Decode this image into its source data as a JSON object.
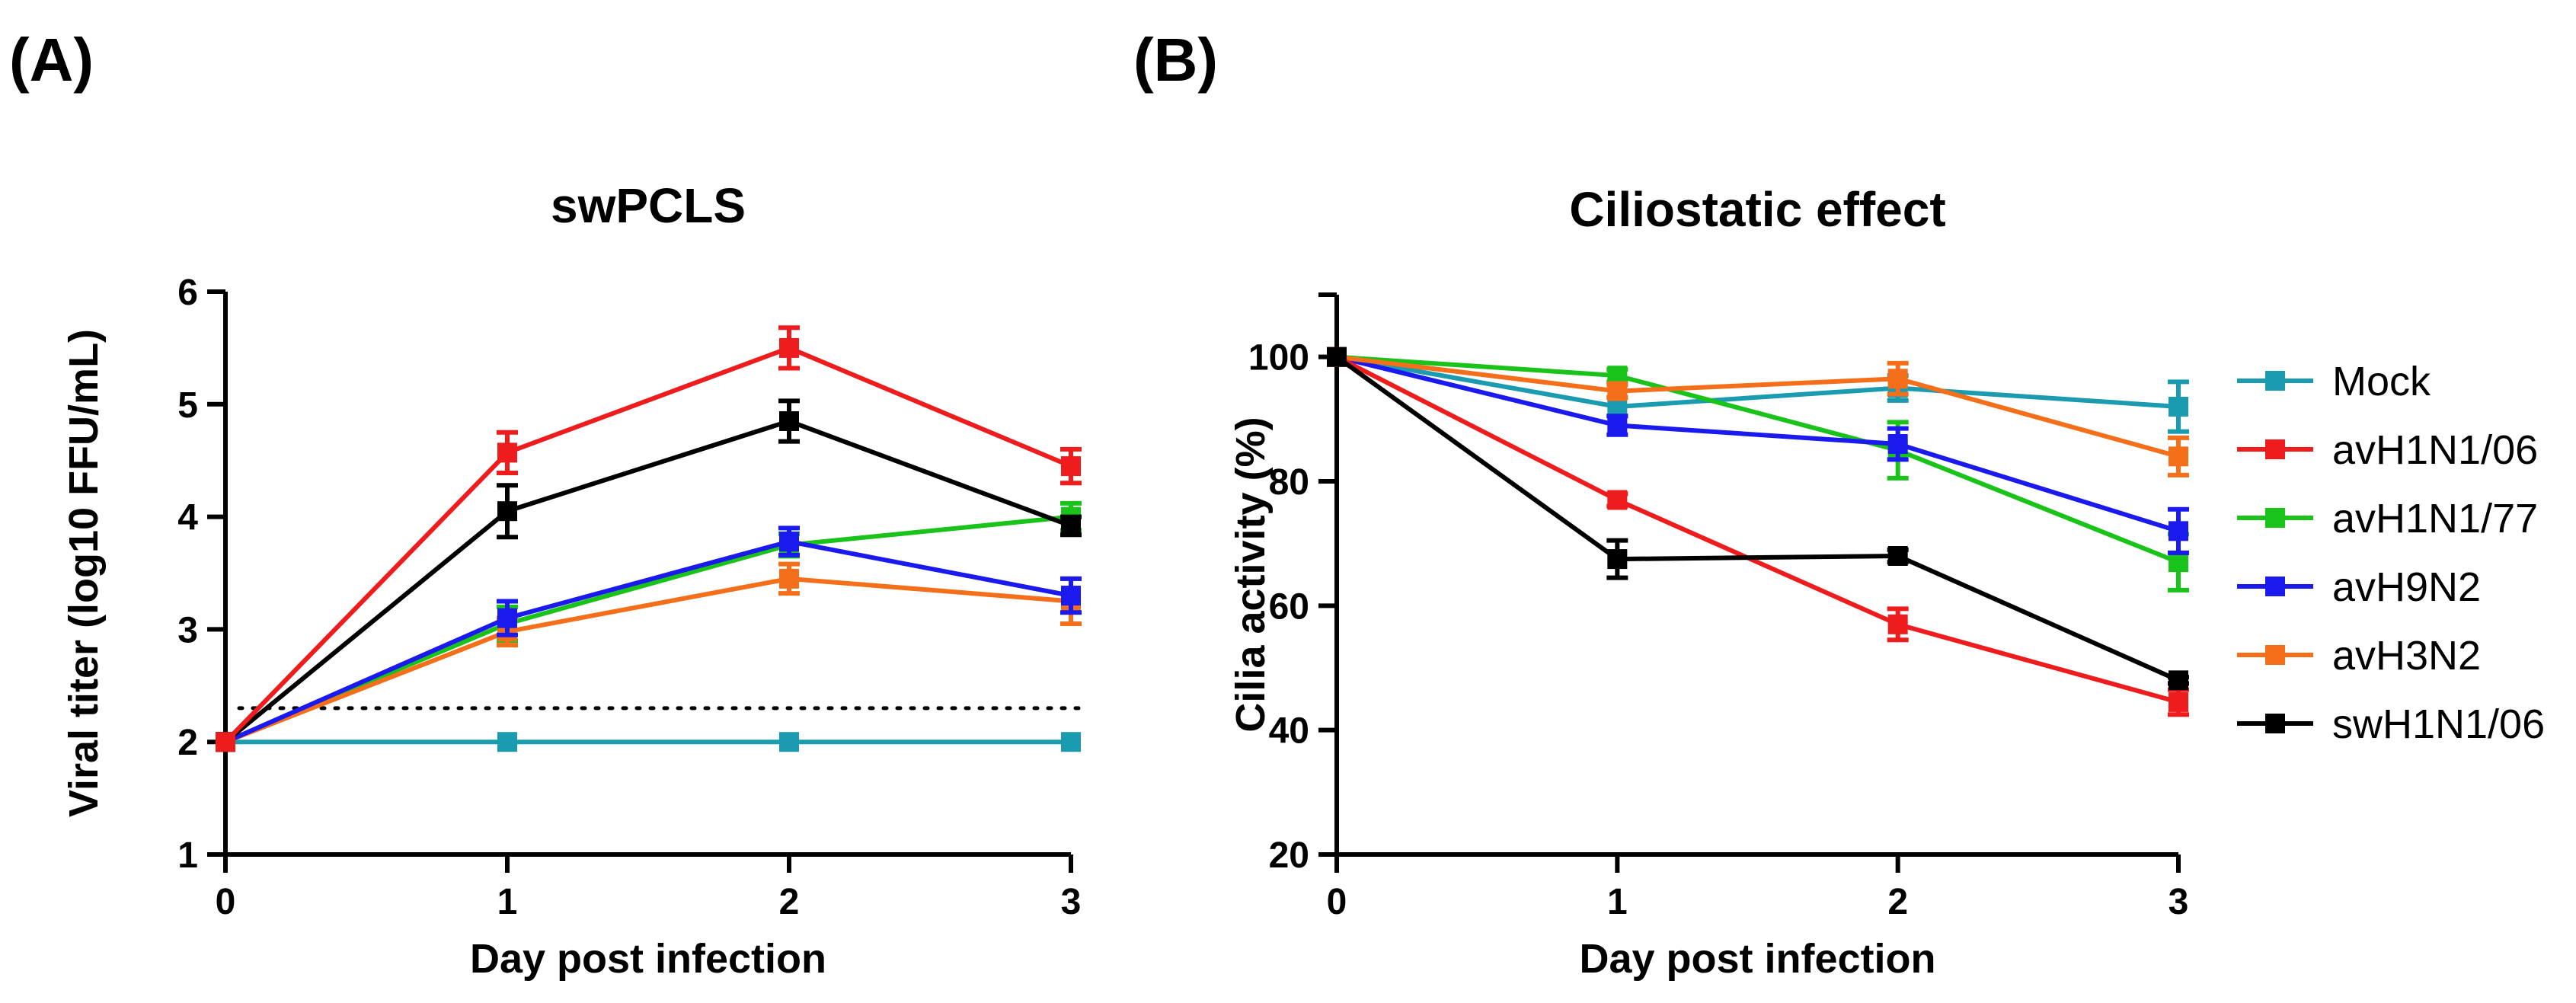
{
  "panels": [
    {
      "label": "(A)"
    },
    {
      "label": "(B)"
    }
  ],
  "legend": {
    "entries": [
      {
        "name": "Mock",
        "color": "#1a9bb0"
      },
      {
        "name": "avH1N1/06",
        "color": "#ee1c1c"
      },
      {
        "name": "avH1N1/77",
        "color": "#1ac31a"
      },
      {
        "name": "avH9N2",
        "color": "#1a1aee"
      },
      {
        "name": "avH3N2",
        "color": "#f56f1a"
      },
      {
        "name": "swH1N1/06",
        "color": "#000000"
      }
    ]
  },
  "chart_data": [
    {
      "type": "line",
      "title": "swPCLS",
      "xlabel": "Day post infection",
      "ylabel": "Viral titer (log10 FFU/mL)",
      "x": [
        0,
        1,
        2,
        3
      ],
      "xticks": [
        "0",
        "1",
        "2",
        "3"
      ],
      "ylim": [
        1,
        6
      ],
      "yticks": [
        "1",
        "2",
        "3",
        "4",
        "5",
        "6"
      ],
      "detection_limit": 2.3,
      "series": [
        {
          "name": "Mock",
          "color": "#1a9bb0",
          "values": [
            2.0,
            2.0,
            2.0,
            2.0
          ],
          "errors": [
            0,
            0,
            0,
            0
          ]
        },
        {
          "name": "avH1N1/77",
          "color": "#1ac31a",
          "values": [
            2.0,
            3.05,
            3.75,
            4.0
          ],
          "errors": [
            0,
            0.15,
            0.1,
            0.12
          ]
        },
        {
          "name": "avH3N2",
          "color": "#f56f1a",
          "values": [
            2.0,
            2.98,
            3.45,
            3.25
          ],
          "errors": [
            0,
            0.12,
            0.13,
            0.2
          ]
        },
        {
          "name": "avH9N2",
          "color": "#1a1aee",
          "values": [
            2.0,
            3.1,
            3.78,
            3.3
          ],
          "errors": [
            0,
            0.15,
            0.12,
            0.15
          ]
        },
        {
          "name": "swH1N1/06",
          "color": "#000000",
          "values": [
            2.0,
            4.05,
            4.85,
            3.92
          ],
          "errors": [
            0,
            0.23,
            0.18,
            0.08
          ]
        },
        {
          "name": "avH1N1/06",
          "color": "#ee1c1c",
          "values": [
            2.0,
            4.57,
            5.5,
            4.45
          ],
          "errors": [
            0,
            0.18,
            0.18,
            0.15
          ]
        }
      ]
    },
    {
      "type": "line",
      "title": "Ciliostatic effect",
      "xlabel": "Day post infection",
      "ylabel": "Cilia activity (%)",
      "x": [
        0,
        1,
        2,
        3
      ],
      "xticks": [
        "0",
        "1",
        "2",
        "3"
      ],
      "ylim": [
        20,
        110
      ],
      "yticks": [
        "20",
        "40",
        "60",
        "80",
        "100"
      ],
      "series": [
        {
          "name": "Mock",
          "color": "#1a9bb0",
          "values": [
            100,
            92,
            95,
            92
          ],
          "errors": [
            0,
            1.5,
            2,
            4
          ]
        },
        {
          "name": "avH1N1/77",
          "color": "#1ac31a",
          "values": [
            100,
            97,
            85,
            67
          ],
          "errors": [
            0,
            1,
            4.5,
            4.5
          ]
        },
        {
          "name": "avH9N2",
          "color": "#1a1aee",
          "values": [
            100,
            89,
            86,
            72
          ],
          "errors": [
            0,
            1.5,
            2.5,
            3.5
          ]
        },
        {
          "name": "avH3N2",
          "color": "#f56f1a",
          "values": [
            100,
            94.5,
            96.5,
            84
          ],
          "errors": [
            0,
            1,
            2.5,
            3
          ]
        },
        {
          "name": "avH1N1/06",
          "color": "#ee1c1c",
          "values": [
            100,
            77,
            57,
            44.5
          ],
          "errors": [
            0,
            1,
            2.5,
            2
          ]
        },
        {
          "name": "swH1N1/06",
          "color": "#000000",
          "values": [
            100,
            67.5,
            68,
            48
          ],
          "errors": [
            0,
            3,
            1,
            0.5
          ]
        }
      ]
    }
  ]
}
